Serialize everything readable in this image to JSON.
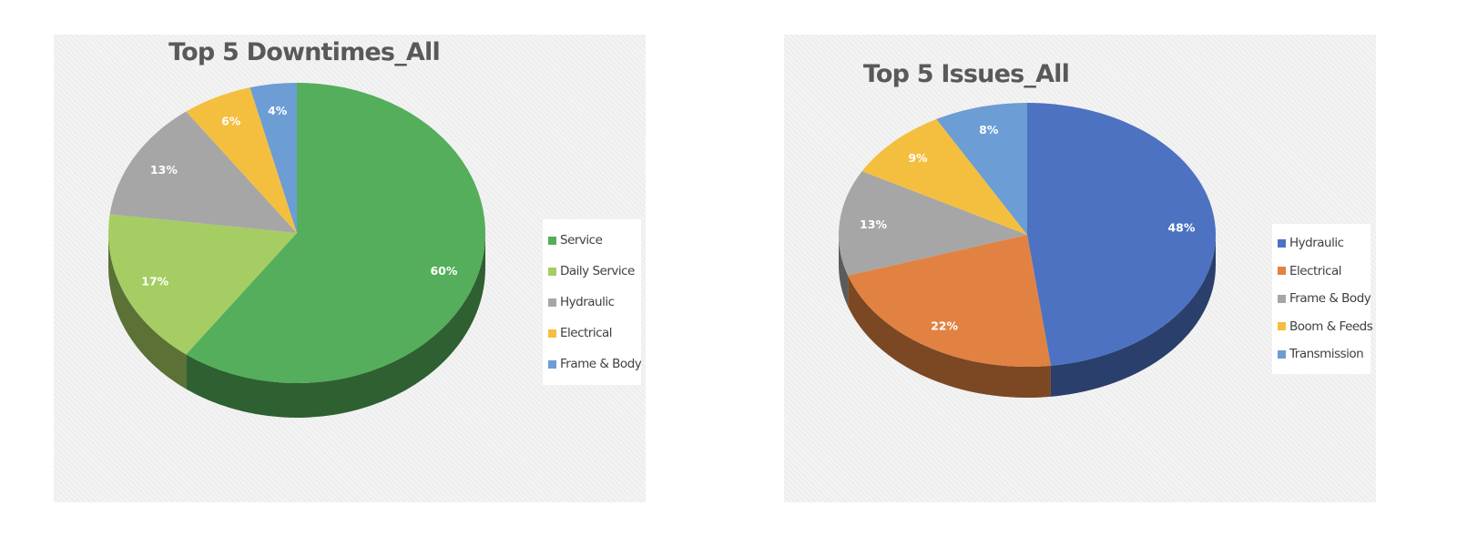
{
  "chart_data": [
    {
      "type": "pie",
      "title": "Top 5 Downtimes_All",
      "categories": [
        "Service",
        "Daily Service",
        "Hydraulic",
        "Electrical",
        "Frame & Body"
      ],
      "values": [
        60,
        17,
        13,
        6,
        4
      ],
      "value_labels": [
        "60%",
        "17%",
        "13%",
        "6%",
        "4%"
      ],
      "colors": [
        "#54ae5b",
        "#a5cd63",
        "#a6a6a6",
        "#f4bf3f",
        "#6c9dd5"
      ],
      "legend_position": "right",
      "style": "3d"
    },
    {
      "type": "pie",
      "title": "Top 5 Issues_All",
      "categories": [
        "Hydraulic",
        "Electrical",
        "Frame & Body",
        "Boom & Feeds",
        "Transmission"
      ],
      "values": [
        48,
        22,
        13,
        9,
        8
      ],
      "value_labels": [
        "48%",
        "22%",
        "13%",
        "9%",
        "8%"
      ],
      "colors": [
        "#4d72c2",
        "#e28242",
        "#a6a6a6",
        "#f4bf3f",
        "#6c9dd5"
      ],
      "legend_position": "right",
      "style": "3d"
    }
  ]
}
